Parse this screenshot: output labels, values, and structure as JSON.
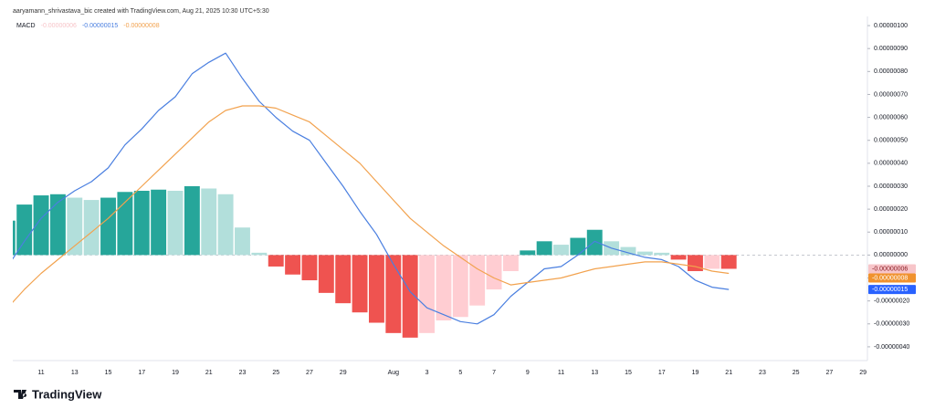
{
  "header": "aaryamann_shrivastava_bic created with TradingView.com, Aug 21, 2025 10:30 UTC+5:30",
  "watermark": "TradingView",
  "chart_data": {
    "type": "macd",
    "indicator": "MACD",
    "categories": [
      null,
      null,
      "11",
      null,
      "13",
      null,
      "15",
      null,
      "17",
      null,
      "19",
      null,
      "21",
      null,
      "23",
      null,
      "25",
      null,
      "27",
      null,
      "29",
      null,
      null,
      "Aug",
      null,
      "3",
      null,
      "5",
      null,
      "7",
      null,
      "9",
      null,
      "11",
      null,
      "13",
      null,
      "15",
      null,
      "17",
      null,
      "19",
      null,
      "21",
      null,
      "23",
      null,
      "25",
      null,
      "27",
      null,
      "29"
    ],
    "ylim": [
      -4.6e-07,
      1.04e-06
    ],
    "yticks": [
      {
        "value": 1e-06,
        "label": "0.00000100"
      },
      {
        "value": 9e-07,
        "label": "0.00000090"
      },
      {
        "value": 8e-07,
        "label": "0.00000080"
      },
      {
        "value": 7e-07,
        "label": "0.00000070"
      },
      {
        "value": 6e-07,
        "label": "0.00000060"
      },
      {
        "value": 5e-07,
        "label": "0.00000050"
      },
      {
        "value": 4e-07,
        "label": "0.00000040"
      },
      {
        "value": 3e-07,
        "label": "0.00000030"
      },
      {
        "value": 2e-07,
        "label": "0.00000020"
      },
      {
        "value": 1e-07,
        "label": "0.00000010"
      },
      {
        "value": 0,
        "label": "0.00000000"
      },
      {
        "value": -1e-07,
        "label": "-0.00000010"
      },
      {
        "value": -2e-07,
        "label": "-0.00000020"
      },
      {
        "value": -3e-07,
        "label": "-0.00000030"
      },
      {
        "value": -4e-07,
        "label": "-0.00000040"
      }
    ],
    "zero_line": true,
    "grid": false,
    "series": [
      {
        "type": "histogram",
        "color": "#f7c5c9",
        "last_label": "-0.00000006",
        "palette": {
          "up_rising": "#26a69a",
          "up_falling": "#b2dfdb",
          "down_falling": "#ef5350",
          "down_rising": "#ffcdd2"
        },
        "values": [
          1.5e-07,
          2.2e-07,
          2.6e-07,
          2.65e-07,
          2.5e-07,
          2.4e-07,
          2.5e-07,
          2.75e-07,
          2.8e-07,
          2.85e-07,
          2.8e-07,
          3e-07,
          2.9e-07,
          2.65e-07,
          1.2e-07,
          1e-08,
          -5e-08,
          -8.5e-08,
          -1.1e-07,
          -1.65e-07,
          -2.1e-07,
          -2.5e-07,
          -2.95e-07,
          -3.4e-07,
          -3.6e-07,
          -3.4e-07,
          -2.85e-07,
          -2.7e-07,
          -2.2e-07,
          -1.5e-07,
          -7e-08,
          2e-08,
          6e-08,
          4.5e-08,
          7.5e-08,
          1.1e-07,
          6e-08,
          3.5e-08,
          1.5e-08,
          1e-08,
          -2e-08,
          -7e-08,
          -6e-08,
          -6e-08,
          null,
          null,
          null,
          null,
          null,
          null,
          null,
          null
        ]
      },
      {
        "type": "line",
        "color": "#4a7fe0",
        "badge_color": "#2962ff",
        "last_label": "-0.00000015",
        "values": [
          -5e-08,
          6e-08,
          1.6e-07,
          2.3e-07,
          2.8e-07,
          3.2e-07,
          3.8e-07,
          4.8e-07,
          5.5e-07,
          6.3e-07,
          6.9e-07,
          7.9e-07,
          8.4e-07,
          8.8e-07,
          7.7e-07,
          6.7e-07,
          6e-07,
          5.4e-07,
          5e-07,
          4e-07,
          3e-07,
          1.9e-07,
          9e-08,
          -4e-08,
          -1.6e-07,
          -2.3e-07,
          -2.6e-07,
          -2.9e-07,
          -3e-07,
          -2.6e-07,
          -1.8e-07,
          -1.2e-07,
          -6e-08,
          -5e-08,
          0,
          6e-08,
          3e-08,
          1e-08,
          -1e-08,
          -2e-08,
          -5e-08,
          -1.1e-07,
          -1.4e-07,
          -1.5e-07,
          null,
          null,
          null,
          null,
          null,
          null,
          null,
          null
        ]
      },
      {
        "type": "line",
        "color": "#f2a24e",
        "badge_color": "#f0922e",
        "last_label": "-0.00000008",
        "values": [
          -2.3e-07,
          -1.5e-07,
          -8e-08,
          -2e-08,
          4e-08,
          1e-07,
          1.6e-07,
          2.3e-07,
          3e-07,
          3.7e-07,
          4.4e-07,
          5.1e-07,
          5.8e-07,
          6.3e-07,
          6.5e-07,
          6.5e-07,
          6.4e-07,
          6.1e-07,
          5.8e-07,
          5.2e-07,
          4.6e-07,
          4e-07,
          3.2e-07,
          2.4e-07,
          1.6e-07,
          1e-07,
          4e-08,
          -1e-08,
          -6e-08,
          -1e-07,
          -1.3e-07,
          -1.2e-07,
          -1.1e-07,
          -1e-07,
          -8e-08,
          -6e-08,
          -5e-08,
          -4e-08,
          -3e-08,
          -3e-08,
          -4e-08,
          -5e-08,
          -7e-08,
          -8e-08,
          null,
          null,
          null,
          null,
          null,
          null,
          null,
          null
        ]
      }
    ]
  }
}
